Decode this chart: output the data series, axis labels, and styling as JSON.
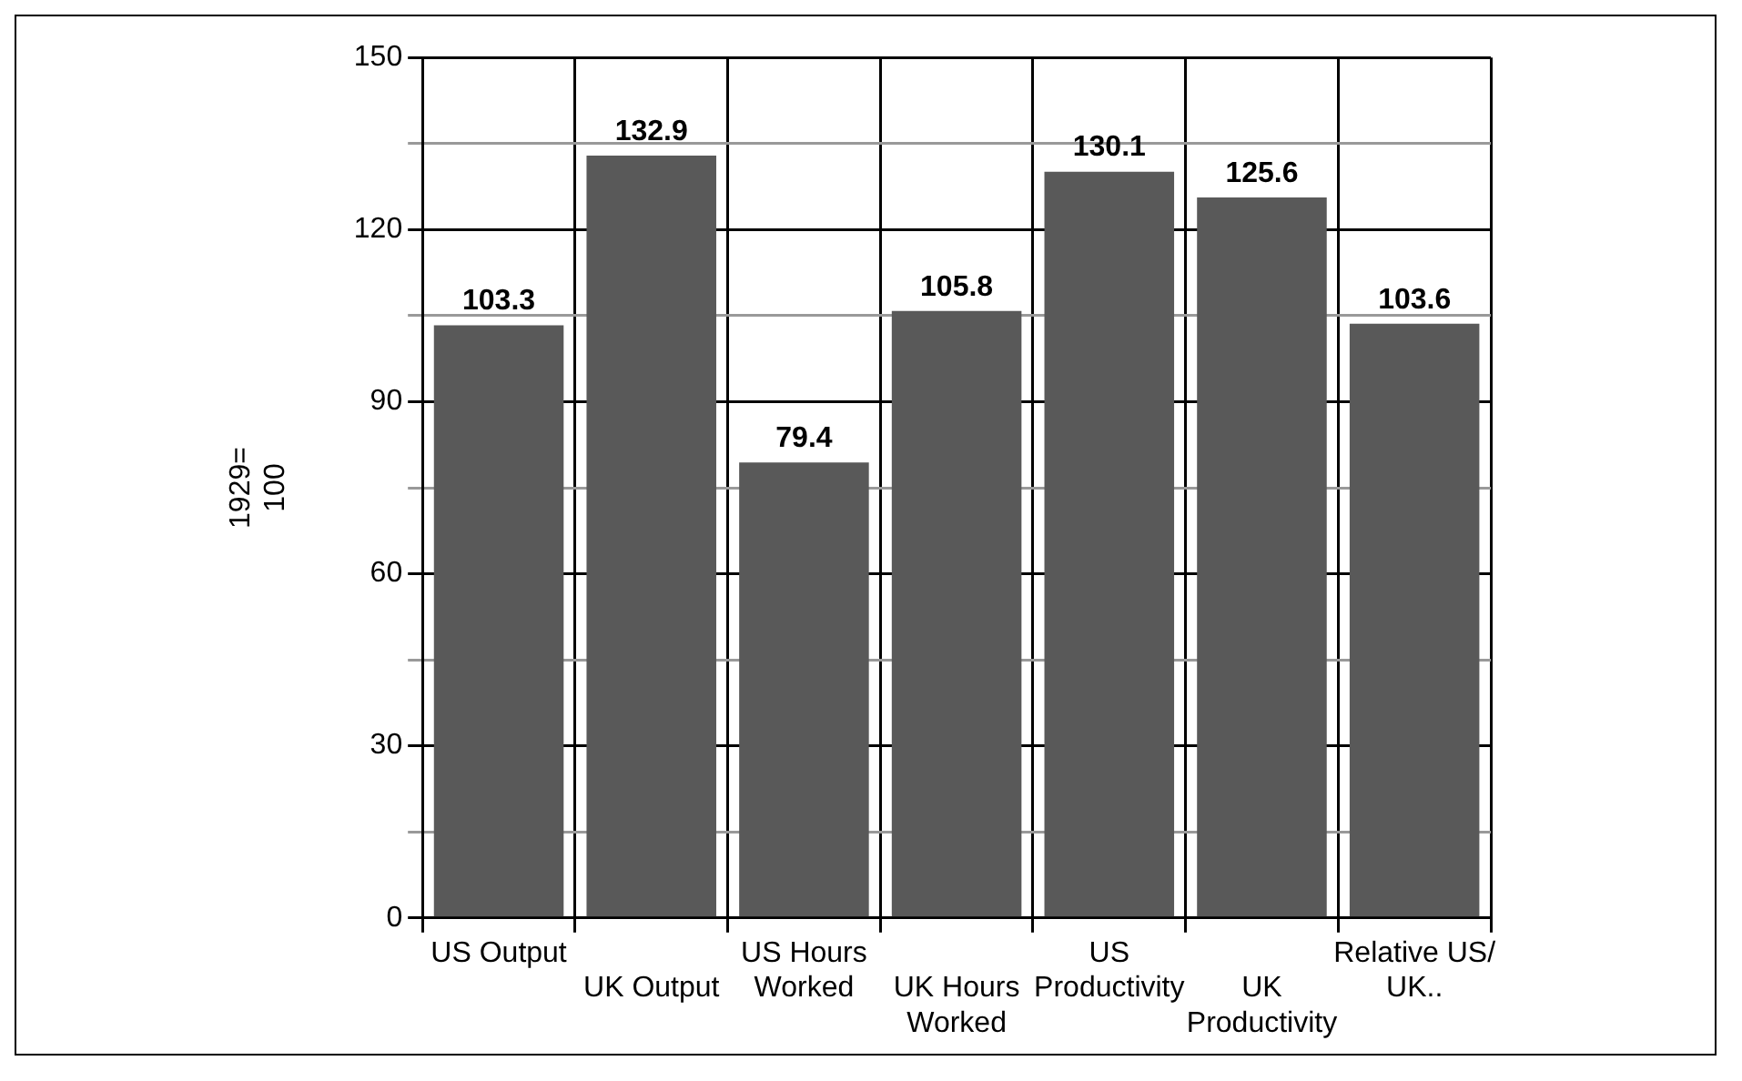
{
  "chart_data": {
    "type": "bar",
    "ylabel": "1929= 100",
    "categories": [
      "US Output",
      "UK Output",
      "US Hours\nWorked",
      "UK Hours\nWorked",
      "US\nProductivity",
      "UK\nProductivity",
      "Relative US/\nUK.."
    ],
    "values": [
      103.3,
      132.9,
      79.4,
      105.8,
      130.1,
      125.6,
      103.6
    ],
    "color": "#595959",
    "ylim": [
      0,
      150
    ],
    "yticks": [
      0,
      {
        "value": 15,
        "label": null
      },
      30,
      {
        "value": 45,
        "label": null
      },
      60,
      {
        "value": 75,
        "label": null
      },
      90,
      {
        "value": 105,
        "label": null
      },
      120,
      {
        "value": 135,
        "label": null
      },
      150
    ],
    "grid": true,
    "data_labels": true
  }
}
